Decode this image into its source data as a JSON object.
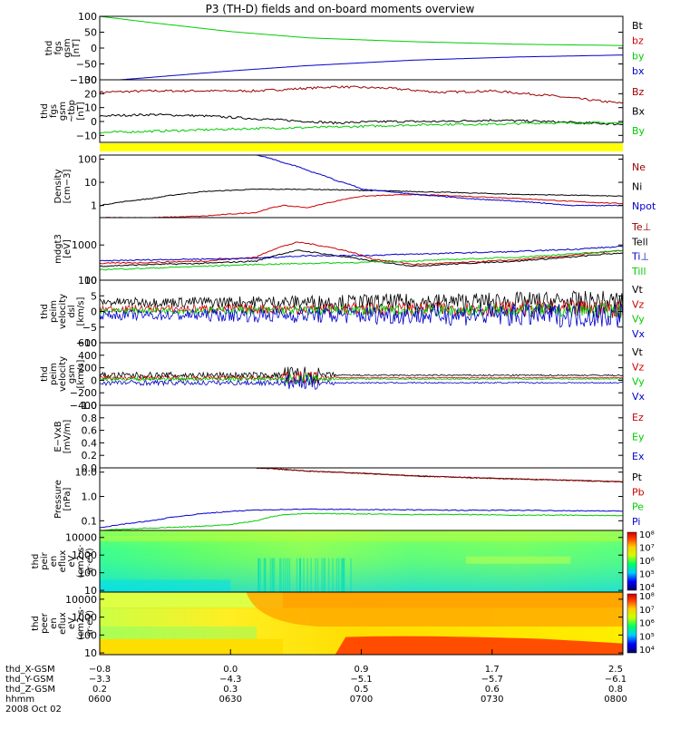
{
  "title": "P3 (TH-D) fields and on-board moments overview",
  "colors": {
    "black": "#000000",
    "red": "#cc0000",
    "green": "#00cc00",
    "blue": "#0000cc",
    "yellow": "#ffff00",
    "darkred": "#990000"
  },
  "chart_data": [
    {
      "type": "line",
      "ylabel": [
        "thd",
        "fgs",
        "gsm",
        "[nT]"
      ],
      "ylim": [
        -100,
        100
      ],
      "ticks": [
        "100",
        "50",
        "0",
        "−50",
        "−100"
      ],
      "tick_values": [
        100,
        50,
        0,
        -50,
        -100
      ],
      "legend": [
        "Bt",
        "bz",
        "by",
        "bx"
      ],
      "series": [
        {
          "name": "by",
          "color": "green",
          "x": [
            0,
            0.1,
            0.25,
            0.4,
            0.6,
            0.8,
            1.0
          ],
          "values": [
            100,
            80,
            52,
            32,
            20,
            12,
            8
          ]
        },
        {
          "name": "bx",
          "color": "blue",
          "x": [
            0,
            0.1,
            0.25,
            0.4,
            0.6,
            0.8,
            1.0
          ],
          "values": [
            -105,
            -92,
            -72,
            -55,
            -38,
            -28,
            -22
          ]
        }
      ]
    },
    {
      "type": "line",
      "ylabel": [
        "thd",
        "fgs",
        "gsm",
        "~tbp",
        "[nT]"
      ],
      "ylim": [
        -15,
        30
      ],
      "ticks": [
        "30",
        "20",
        "10",
        "0",
        "−10"
      ],
      "tick_values": [
        30,
        20,
        10,
        0,
        -10
      ],
      "legend": [
        "Bz",
        "Bx",
        "By"
      ],
      "series": [
        {
          "name": "Bz",
          "color": "darkred",
          "x": [
            0,
            0.1,
            0.2,
            0.3,
            0.45,
            0.55,
            0.65,
            0.75,
            0.85,
            1.0
          ],
          "values": [
            21,
            22,
            22,
            22,
            25,
            24,
            21,
            22,
            19,
            13
          ]
        },
        {
          "name": "Bx",
          "color": "black",
          "x": [
            0,
            0.1,
            0.2,
            0.3,
            0.45,
            0.55,
            0.65,
            0.75,
            0.85,
            1.0
          ],
          "values": [
            4,
            5,
            4,
            2,
            -1,
            0,
            0,
            1,
            0,
            -2
          ]
        },
        {
          "name": "By",
          "color": "green",
          "x": [
            0,
            0.1,
            0.2,
            0.3,
            0.45,
            0.55,
            0.65,
            0.75,
            0.85,
            1.0
          ],
          "values": [
            -8,
            -7,
            -6,
            -5,
            -4,
            -3,
            -2,
            -2,
            -1,
            -1
          ]
        }
      ]
    },
    {
      "type": "line",
      "ylabel": [
        "Density",
        "[cm−3]"
      ],
      "log": true,
      "ylim": [
        0.3,
        150
      ],
      "ticks": [
        "100",
        "10",
        "1"
      ],
      "tick_values": [
        100,
        10,
        1
      ],
      "legend": [
        "Ne",
        "Ni",
        "Npot"
      ],
      "series": [
        {
          "name": "Ni",
          "color": "black",
          "x": [
            0,
            0.1,
            0.2,
            0.3,
            0.4,
            0.5,
            0.6,
            0.7,
            0.8,
            0.9,
            1.0
          ],
          "values": [
            1,
            2,
            4,
            5,
            5,
            4.5,
            4,
            3.5,
            3,
            2.8,
            2.5
          ]
        },
        {
          "name": "Ne",
          "color": "red",
          "x": [
            0,
            0.1,
            0.2,
            0.3,
            0.35,
            0.4,
            0.45,
            0.5,
            0.6,
            0.7,
            0.8,
            0.9,
            1.0
          ],
          "values": [
            0.3,
            0.3,
            0.35,
            0.5,
            1,
            0.8,
            1.5,
            2.5,
            3,
            2.5,
            2,
            1.5,
            1.2
          ]
        },
        {
          "name": "Npot",
          "color": "blue",
          "x": [
            0.3,
            0.35,
            0.4,
            0.45,
            0.5,
            0.6,
            0.7,
            0.8,
            0.9,
            1.0
          ],
          "values": [
            150,
            70,
            30,
            12,
            5,
            3,
            2,
            1.5,
            1,
            1
          ]
        }
      ]
    },
    {
      "type": "line",
      "ylabel": [
        "mdgt3",
        "[eV]"
      ],
      "log": true,
      "ylim": [
        100,
        6000
      ],
      "ticks": [
        "1000",
        "100"
      ],
      "tick_values": [
        1000,
        100
      ],
      "legend": [
        "Te⊥",
        "Tell",
        "Ti⊥",
        "Till"
      ],
      "series": [
        {
          "name": "Tell",
          "color": "black",
          "x": [
            0,
            0.1,
            0.2,
            0.3,
            0.38,
            0.45,
            0.52,
            0.6,
            0.7,
            0.8,
            0.9,
            1.0
          ],
          "values": [
            250,
            280,
            300,
            350,
            700,
            500,
            350,
            250,
            300,
            350,
            450,
            600
          ]
        },
        {
          "name": "Te⊥",
          "color": "red",
          "x": [
            0,
            0.1,
            0.2,
            0.3,
            0.38,
            0.45,
            0.52,
            0.6,
            0.7,
            0.8,
            0.9,
            1.0
          ],
          "values": [
            300,
            320,
            350,
            450,
            1200,
            800,
            400,
            280,
            320,
            380,
            500,
            700
          ]
        },
        {
          "name": "Ti⊥",
          "color": "blue",
          "x": [
            0,
            0.1,
            0.2,
            0.3,
            0.4,
            0.5,
            0.6,
            0.7,
            0.8,
            0.9,
            1.0
          ],
          "values": [
            350,
            380,
            400,
            420,
            500,
            500,
            550,
            600,
            650,
            750,
            900
          ]
        },
        {
          "name": "Till",
          "color": "green",
          "x": [
            0,
            0.1,
            0.2,
            0.3,
            0.4,
            0.5,
            0.6,
            0.7,
            0.8,
            0.9,
            1.0
          ],
          "values": [
            200,
            220,
            250,
            280,
            300,
            320,
            350,
            400,
            450,
            550,
            700
          ]
        }
      ]
    },
    {
      "type": "line",
      "ylabel": [
        "thd",
        "peim",
        "velocity",
        "dsl",
        "[km/s]"
      ],
      "ylim": [
        -10,
        10
      ],
      "ticks": [
        "10",
        "5",
        "0",
        "−5",
        "−10"
      ],
      "tick_values": [
        10,
        5,
        0,
        -5,
        -10
      ],
      "legend": [
        "Vt",
        "Vz",
        "Vy",
        "Vx"
      ],
      "series": []
    },
    {
      "type": "line",
      "ylabel": [
        "thd",
        "peim",
        "velocity",
        "gsm",
        "[km/s]"
      ],
      "ylim": [
        -400,
        600
      ],
      "ticks": [
        "600",
        "400",
        "200",
        "0",
        "−200",
        "−400"
      ],
      "tick_values": [
        600,
        400,
        200,
        0,
        -200,
        -400
      ],
      "legend": [
        "Vt",
        "Vz",
        "Vy",
        "Vx"
      ],
      "series": []
    },
    {
      "type": "line",
      "ylabel": [
        "E−VxB",
        "[mV/m]"
      ],
      "ylim": [
        0,
        1
      ],
      "ticks": [
        "1.0",
        "0.8",
        "0.6",
        "0.4",
        "0.2",
        "0.0"
      ],
      "tick_values": [
        1,
        0.8,
        0.6,
        0.4,
        0.2,
        0
      ],
      "legend": [
        "Ez",
        "Ey",
        "Ex"
      ],
      "series": []
    },
    {
      "type": "line",
      "ylabel": [
        "Pressure",
        "[nPa]"
      ],
      "log": true,
      "ylim": [
        0.04,
        15
      ],
      "ticks": [
        "10.0",
        "1.0",
        "0.1"
      ],
      "tick_values": [
        10,
        1,
        0.1
      ],
      "legend": [
        "Pt",
        "Pb",
        "Pe",
        "Pi"
      ],
      "series": [
        {
          "name": "Pt",
          "color": "black",
          "x": [
            0.3,
            0.4,
            0.5,
            0.6,
            0.7,
            0.8,
            0.9,
            1.0
          ],
          "values": [
            15,
            11,
            9,
            7,
            6,
            5.2,
            4.6,
            4
          ]
        },
        {
          "name": "Pb",
          "color": "darkred",
          "x": [
            0.3,
            0.4,
            0.5,
            0.6,
            0.7,
            0.8,
            0.9,
            1.0
          ],
          "values": [
            15,
            11,
            9,
            7,
            6,
            5.2,
            4.6,
            4
          ]
        },
        {
          "name": "Pi",
          "color": "blue",
          "x": [
            0,
            0.1,
            0.2,
            0.3,
            0.4,
            0.5,
            0.6,
            0.7,
            0.8,
            0.9,
            1.0
          ],
          "values": [
            0.05,
            0.1,
            0.2,
            0.28,
            0.3,
            0.29,
            0.28,
            0.27,
            0.27,
            0.26,
            0.25
          ]
        },
        {
          "name": "Pe",
          "color": "green",
          "x": [
            0,
            0.1,
            0.2,
            0.25,
            0.3,
            0.35,
            0.4,
            0.5,
            0.6,
            0.7,
            0.8,
            0.9,
            1.0
          ],
          "values": [
            0.04,
            0.05,
            0.06,
            0.07,
            0.1,
            0.18,
            0.2,
            0.19,
            0.18,
            0.18,
            0.17,
            0.17,
            0.16
          ]
        }
      ]
    },
    {
      "type": "heatmap",
      "ylabel": [
        "thd",
        "peir",
        "en",
        "eflux",
        "eV",
        "(cm2·s·",
        "sr·eV)"
      ],
      "ticks": [
        "10000",
        "1000",
        "100",
        "10"
      ],
      "tick_values": [
        10000,
        1000,
        100,
        10
      ],
      "log": true,
      "ylim": [
        8,
        25000
      ],
      "colorbar": [
        "10⁸",
        "10⁷",
        "10⁶",
        "10⁵",
        "10⁴"
      ]
    },
    {
      "type": "heatmap",
      "ylabel": [
        "thd",
        "peer",
        "en",
        "eflux",
        "eV",
        "(cm2·s·",
        "sr·eV)"
      ],
      "ticks": [
        "10000",
        "1000",
        "100",
        "10"
      ],
      "tick_values": [
        10000,
        1000,
        100,
        10
      ],
      "log": true,
      "ylim": [
        8,
        25000
      ],
      "colorbar": [
        "10⁸",
        "10⁷",
        "10⁶",
        "10⁵",
        "10⁴"
      ]
    }
  ],
  "xaxis": {
    "row_labels": [
      "thd_X-GSM",
      "thd_Y-GSM",
      "thd_Z-GSM",
      "hhmm",
      "2008 Oct 02"
    ],
    "columns": [
      {
        "x": 0.0,
        "vals": [
          "−0.8",
          "−3.3",
          "0.2",
          "0600"
        ]
      },
      {
        "x": 0.25,
        "vals": [
          "0.0",
          "−4.3",
          "0.3",
          "0630"
        ]
      },
      {
        "x": 0.5,
        "vals": [
          "0.9",
          "−5.1",
          "0.5",
          "0700"
        ]
      },
      {
        "x": 0.75,
        "vals": [
          "1.7",
          "−5.7",
          "0.6",
          "0730"
        ]
      },
      {
        "x": 1.0,
        "vals": [
          "2.5",
          "−6.1",
          "0.8",
          "0800"
        ]
      }
    ]
  }
}
